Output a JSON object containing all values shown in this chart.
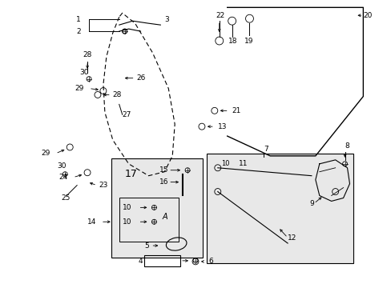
{
  "bg_color": "#ffffff",
  "figsize": [
    4.89,
    3.6
  ],
  "dpi": 100,
  "lightgray": "#e8e8e8"
}
